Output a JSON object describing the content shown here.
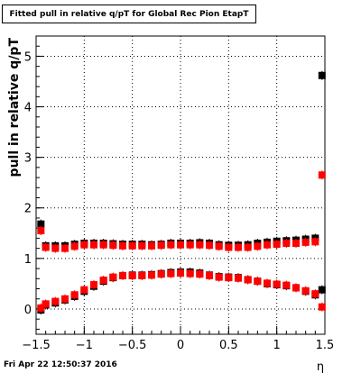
{
  "chart_data": {
    "type": "scatter",
    "title": "Fitted pull in relative q/pT for Global Rec Pion EtapT",
    "xlabel": "η",
    "ylabel": "pull in relative q/pT",
    "xlim": [
      -1.5,
      1.5
    ],
    "ylim": [
      -0.5,
      5.4
    ],
    "x_ticks": [
      "−1.5",
      "−1",
      "−0.5",
      "0",
      "0.5",
      "1",
      "1.5"
    ],
    "y_ticks": [
      "0",
      "1",
      "2",
      "3",
      "4",
      "5"
    ],
    "grid": true,
    "series": [
      {
        "color": "#000000",
        "points": [
          [
            -1.45,
            1.68
          ],
          [
            -1.4,
            1.25
          ],
          [
            -1.3,
            1.25
          ],
          [
            -1.2,
            1.25
          ],
          [
            -1.1,
            1.28
          ],
          [
            -1.0,
            1.3
          ],
          [
            -0.9,
            1.3
          ],
          [
            -0.8,
            1.3
          ],
          [
            -0.7,
            1.29
          ],
          [
            -0.6,
            1.28
          ],
          [
            -0.5,
            1.28
          ],
          [
            -0.4,
            1.28
          ],
          [
            -0.3,
            1.27
          ],
          [
            -0.2,
            1.28
          ],
          [
            -0.1,
            1.3
          ],
          [
            0.0,
            1.3
          ],
          [
            0.1,
            1.3
          ],
          [
            0.2,
            1.31
          ],
          [
            0.3,
            1.3
          ],
          [
            0.4,
            1.27
          ],
          [
            0.5,
            1.26
          ],
          [
            0.6,
            1.26
          ],
          [
            0.7,
            1.27
          ],
          [
            0.8,
            1.3
          ],
          [
            0.9,
            1.32
          ],
          [
            1.0,
            1.34
          ],
          [
            1.1,
            1.35
          ],
          [
            1.2,
            1.36
          ],
          [
            1.3,
            1.38
          ],
          [
            1.4,
            1.4
          ],
          [
            1.47,
            4.62
          ],
          [
            -1.45,
            -0.02
          ],
          [
            -1.4,
            0.08
          ],
          [
            -1.3,
            0.12
          ],
          [
            -1.2,
            0.18
          ],
          [
            -1.1,
            0.25
          ],
          [
            -1.0,
            0.35
          ],
          [
            -0.9,
            0.45
          ],
          [
            -0.8,
            0.55
          ],
          [
            -0.7,
            0.62
          ],
          [
            -0.6,
            0.66
          ],
          [
            -0.5,
            0.67
          ],
          [
            -0.4,
            0.67
          ],
          [
            -0.3,
            0.68
          ],
          [
            -0.2,
            0.7
          ],
          [
            -0.1,
            0.72
          ],
          [
            0.0,
            0.73
          ],
          [
            0.1,
            0.73
          ],
          [
            0.2,
            0.71
          ],
          [
            0.3,
            0.67
          ],
          [
            0.4,
            0.64
          ],
          [
            0.5,
            0.63
          ],
          [
            0.6,
            0.62
          ],
          [
            0.7,
            0.58
          ],
          [
            0.8,
            0.55
          ],
          [
            0.9,
            0.5
          ],
          [
            1.0,
            0.48
          ],
          [
            1.1,
            0.46
          ],
          [
            1.2,
            0.42
          ],
          [
            1.3,
            0.35
          ],
          [
            1.4,
            0.28
          ],
          [
            1.47,
            0.38
          ]
        ]
      },
      {
        "color": "#ff0000",
        "points": [
          [
            -1.45,
            1.55
          ],
          [
            -1.4,
            1.22
          ],
          [
            -1.3,
            1.2
          ],
          [
            -1.2,
            1.2
          ],
          [
            -1.1,
            1.24
          ],
          [
            -1.0,
            1.27
          ],
          [
            -0.9,
            1.27
          ],
          [
            -0.8,
            1.27
          ],
          [
            -0.7,
            1.26
          ],
          [
            -0.6,
            1.25
          ],
          [
            -0.5,
            1.25
          ],
          [
            -0.4,
            1.25
          ],
          [
            -0.3,
            1.25
          ],
          [
            -0.2,
            1.26
          ],
          [
            -0.1,
            1.27
          ],
          [
            0.0,
            1.27
          ],
          [
            0.1,
            1.27
          ],
          [
            0.2,
            1.27
          ],
          [
            0.3,
            1.26
          ],
          [
            0.4,
            1.24
          ],
          [
            0.5,
            1.22
          ],
          [
            0.6,
            1.22
          ],
          [
            0.7,
            1.22
          ],
          [
            0.8,
            1.24
          ],
          [
            0.9,
            1.27
          ],
          [
            1.0,
            1.28
          ],
          [
            1.1,
            1.3
          ],
          [
            1.2,
            1.3
          ],
          [
            1.3,
            1.32
          ],
          [
            1.4,
            1.33
          ],
          [
            1.47,
            2.65
          ],
          [
            -1.45,
            0.02
          ],
          [
            -1.4,
            0.1
          ],
          [
            -1.3,
            0.15
          ],
          [
            -1.2,
            0.2
          ],
          [
            -1.1,
            0.28
          ],
          [
            -1.0,
            0.38
          ],
          [
            -0.9,
            0.48
          ],
          [
            -0.8,
            0.57
          ],
          [
            -0.7,
            0.63
          ],
          [
            -0.6,
            0.66
          ],
          [
            -0.5,
            0.66
          ],
          [
            -0.4,
            0.66
          ],
          [
            -0.3,
            0.67
          ],
          [
            -0.2,
            0.69
          ],
          [
            -0.1,
            0.7
          ],
          [
            0.0,
            0.71
          ],
          [
            0.1,
            0.7
          ],
          [
            0.2,
            0.69
          ],
          [
            0.3,
            0.66
          ],
          [
            0.4,
            0.63
          ],
          [
            0.5,
            0.62
          ],
          [
            0.6,
            0.61
          ],
          [
            0.7,
            0.58
          ],
          [
            0.8,
            0.55
          ],
          [
            0.9,
            0.51
          ],
          [
            1.0,
            0.49
          ],
          [
            1.1,
            0.47
          ],
          [
            1.2,
            0.42
          ],
          [
            1.3,
            0.36
          ],
          [
            1.4,
            0.3
          ],
          [
            1.47,
            0.04
          ]
        ]
      }
    ]
  },
  "footer": {
    "timestamp": "Fri Apr 22 12:50:37 2016"
  }
}
